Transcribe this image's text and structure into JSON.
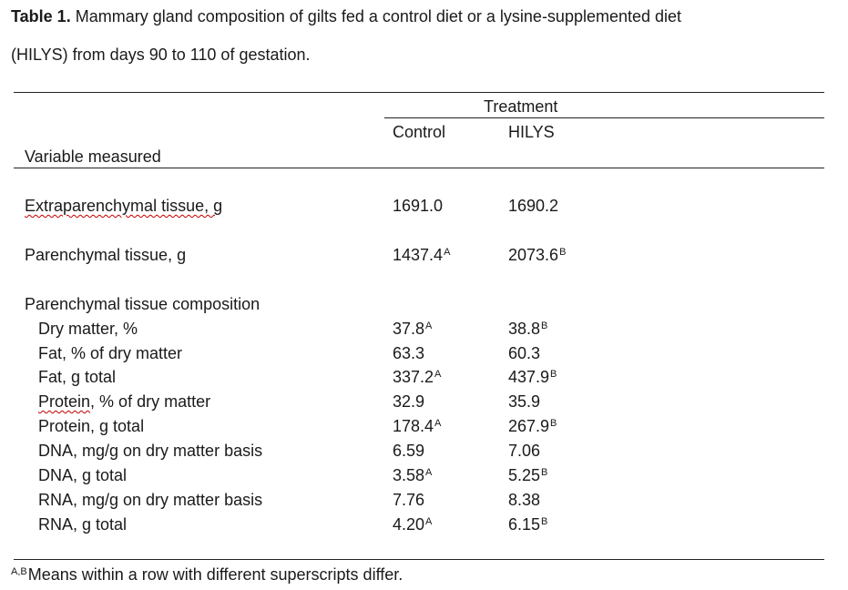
{
  "caption": {
    "label": "Table 1.",
    "line1": " Mammary gland composition of gilts fed a control diet or a lysine-supplemented diet",
    "line2": "(HILYS) from days 90 to 110 of gestation."
  },
  "header": {
    "group_label": "Treatment",
    "col_control": "Control",
    "col_hilys": "HILYS",
    "variable_label": "Variable measured"
  },
  "rows": [
    {
      "label": "Extraparenchymal tissue, g",
      "control": "1691.0",
      "control_sup": "",
      "hilys": "1690.2",
      "hilys_sup": ""
    },
    {
      "label": "Parenchymal tissue, g",
      "control": "1437.4",
      "control_sup": "A",
      "hilys": "2073.6",
      "hilys_sup": "B"
    },
    {
      "label": "Parenchymal tissue composition",
      "control": "",
      "control_sup": "",
      "hilys": "",
      "hilys_sup": ""
    },
    {
      "label": "Dry matter, %",
      "control": "37.8",
      "control_sup": "A",
      "hilys": "38.8",
      "hilys_sup": "B"
    },
    {
      "label": "Fat, % of dry matter",
      "control": "63.3",
      "control_sup": "",
      "hilys": "60.3",
      "hilys_sup": ""
    },
    {
      "label": "Fat, g total",
      "control": "337.2",
      "control_sup": "A",
      "hilys": "437.9",
      "hilys_sup": "B"
    },
    {
      "label_word": "Protein",
      "label_rest": ", % of dry matter",
      "control": "32.9",
      "control_sup": "",
      "hilys": "35.9",
      "hilys_sup": ""
    },
    {
      "label": "Protein, g total",
      "control": "178.4",
      "control_sup": "A",
      "hilys": "267.9",
      "hilys_sup": "B"
    },
    {
      "label": "DNA, mg/g on dry matter basis",
      "control": "6.59",
      "control_sup": "",
      "hilys": "7.06",
      "hilys_sup": ""
    },
    {
      "label": "DNA, g total",
      "control": "3.58",
      "control_sup": "A",
      "hilys": "5.25",
      "hilys_sup": "B"
    },
    {
      "label": "RNA, mg/g on dry matter basis",
      "control": "7.76",
      "control_sup": "",
      "hilys": "8.38",
      "hilys_sup": ""
    },
    {
      "label": "RNA, g total",
      "control": "4.20",
      "control_sup": "A",
      "hilys": "6.15",
      "hilys_sup": "B"
    }
  ],
  "footnote": {
    "sup": "A,B",
    "text": "Means within a row with different superscripts differ."
  }
}
